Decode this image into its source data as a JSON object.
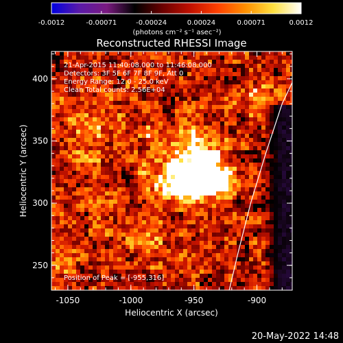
{
  "colorbar": {
    "ticks": [
      "-0.0012",
      "-0.00071",
      "-0.00024",
      "0.00024",
      "0.00071",
      "0.0012"
    ],
    "units_label": "(photons cm⁻² s⁻¹ asec⁻²)",
    "gradient_colors": [
      "#0000e0",
      "#5a1aa8",
      "#7a1a80",
      "#000000",
      "#6a0000",
      "#c01000",
      "#ff4000",
      "#ff9000",
      "#ffe040",
      "#ffffff"
    ]
  },
  "plot": {
    "title": "Reconstructed RHESSI Image",
    "xlabel": "Heliocentric X (arcsec)",
    "ylabel": "Heliocentric Y (arcsec)",
    "info_lines": [
      "21-Apr-2015 11:40:08.000 to 11:46:08.000",
      "Detectors: 3F 5F 6F 7F 8F 9F, Att 0",
      "Energy Range: 12.0 - 25.0 keV",
      "Clean     Total counts: 2.56E+04"
    ],
    "peak_label": "Position of Peak = [-955,316]",
    "xticks": [
      {
        "v": -1050,
        "label": "-1050"
      },
      {
        "v": -1000,
        "label": "-1000"
      },
      {
        "v": -950,
        "label": "-950"
      },
      {
        "v": -900,
        "label": "-900"
      }
    ],
    "yticks": [
      {
        "v": 250,
        "label": "250"
      },
      {
        "v": 300,
        "label": "300"
      },
      {
        "v": 350,
        "label": "350"
      },
      {
        "v": 400,
        "label": "400"
      }
    ]
  },
  "footer": {
    "timestamp": "20-May-2022 14:48"
  },
  "chart_data": {
    "type": "heatmap",
    "title": "Reconstructed RHESSI Image",
    "xlabel": "Heliocentric X (arcsec)",
    "ylabel": "Heliocentric Y (arcsec)",
    "xlim": [
      -1063,
      -872
    ],
    "ylim": [
      230,
      422
    ],
    "colorbar_range": [
      -0.0012,
      0.0012
    ],
    "peak": {
      "x": -955,
      "y": 316
    },
    "limb_curve": {
      "points": [
        [
          -922,
          230
        ],
        [
          -915,
          260
        ],
        [
          -905,
          300
        ],
        [
          -893,
          340
        ],
        [
          -880,
          380
        ],
        [
          -872,
          397
        ]
      ]
    },
    "intensity_blobs": [
      {
        "x": -955,
        "y": 316,
        "sx": 16,
        "sy": 9,
        "a": 1.0
      },
      {
        "x": -945,
        "y": 330,
        "sx": 10,
        "sy": 14,
        "a": 0.95
      },
      {
        "x": -930,
        "y": 320,
        "sx": 9,
        "sy": 8,
        "a": 0.7
      },
      {
        "x": -965,
        "y": 345,
        "sx": 22,
        "sy": 18,
        "a": 0.35
      },
      {
        "x": -1035,
        "y": 360,
        "sx": 18,
        "sy": 28,
        "a": 0.25
      },
      {
        "x": -905,
        "y": 385,
        "sx": 12,
        "sy": 10,
        "a": 0.3
      },
      {
        "x": -985,
        "y": 275,
        "sx": 20,
        "sy": 20,
        "a": 0.2
      },
      {
        "x": -1050,
        "y": 255,
        "sx": 15,
        "sy": 15,
        "a": 0.2
      }
    ],
    "background_level": 0.35,
    "negative_region": {
      "x_min": -895,
      "x_max": -872,
      "y_min": 230,
      "y_max": 380,
      "level": -0.25
    },
    "grid": false
  }
}
